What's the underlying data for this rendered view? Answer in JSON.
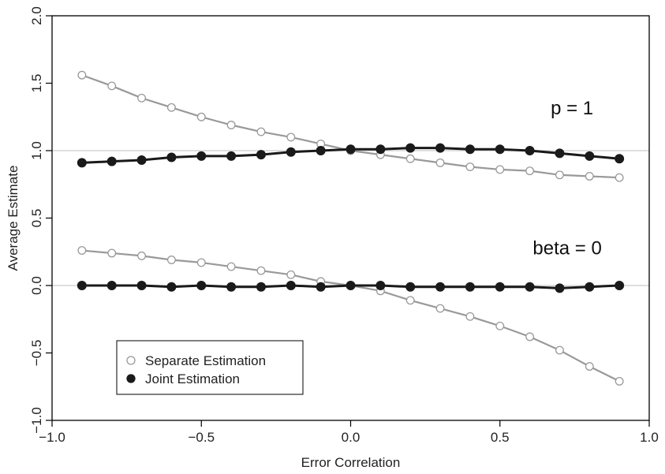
{
  "chart_data": {
    "type": "line",
    "xlabel": "Error Correlation",
    "ylabel": "Average Estimate",
    "xlim": [
      -1.0,
      1.0
    ],
    "ylim": [
      -1.0,
      2.0
    ],
    "x_ticks": [
      "-1.0",
      "-0.5",
      "0.0",
      "0.5",
      "1.0"
    ],
    "y_ticks": [
      "-1.0",
      "-0.5",
      "0.0",
      "0.5",
      "1.0",
      "1.5",
      "2.0"
    ],
    "reference_lines": [
      1.0,
      0.0
    ],
    "annotations": [
      {
        "text": "p = 1",
        "x": 0.67,
        "y": 1.27
      },
      {
        "text": "beta = 0",
        "x": 0.61,
        "y": 0.23
      }
    ],
    "legend": {
      "position": "bottom-left",
      "entries": [
        "Separate Estimation",
        "Joint Estimation"
      ]
    },
    "x": [
      -0.9,
      -0.8,
      -0.7,
      -0.6,
      -0.5,
      -0.4,
      -0.3,
      -0.2,
      -0.1,
      0.0,
      0.1,
      0.2,
      0.3,
      0.4,
      0.5,
      0.6,
      0.7,
      0.8,
      0.9
    ],
    "series": [
      {
        "name": "Separate Estimation",
        "group": "p = 1",
        "marker": "open",
        "color": "#999999",
        "values": [
          1.56,
          1.48,
          1.39,
          1.32,
          1.25,
          1.19,
          1.14,
          1.1,
          1.05,
          1.0,
          0.97,
          0.94,
          0.91,
          0.88,
          0.86,
          0.85,
          0.82,
          0.81,
          0.8
        ]
      },
      {
        "name": "Joint Estimation",
        "group": "p = 1",
        "marker": "filled",
        "color": "#1a1a1a",
        "values": [
          0.91,
          0.92,
          0.93,
          0.95,
          0.96,
          0.96,
          0.97,
          0.99,
          1.0,
          1.01,
          1.01,
          1.02,
          1.02,
          1.01,
          1.01,
          1.0,
          0.98,
          0.96,
          0.94
        ]
      },
      {
        "name": "Separate Estimation",
        "group": "beta = 0",
        "marker": "open",
        "color": "#999999",
        "values": [
          0.26,
          0.24,
          0.22,
          0.19,
          0.17,
          0.14,
          0.11,
          0.08,
          0.03,
          0.0,
          -0.04,
          -0.11,
          -0.17,
          -0.23,
          -0.3,
          -0.38,
          -0.48,
          -0.6,
          -0.71
        ]
      },
      {
        "name": "Joint Estimation",
        "group": "beta = 0",
        "marker": "filled",
        "color": "#1a1a1a",
        "values": [
          0.0,
          0.0,
          0.0,
          -0.01,
          0.0,
          -0.01,
          -0.01,
          0.0,
          -0.01,
          0.0,
          0.0,
          -0.01,
          -0.01,
          -0.01,
          -0.01,
          -0.01,
          -0.02,
          -0.01,
          0.0
        ]
      }
    ]
  }
}
